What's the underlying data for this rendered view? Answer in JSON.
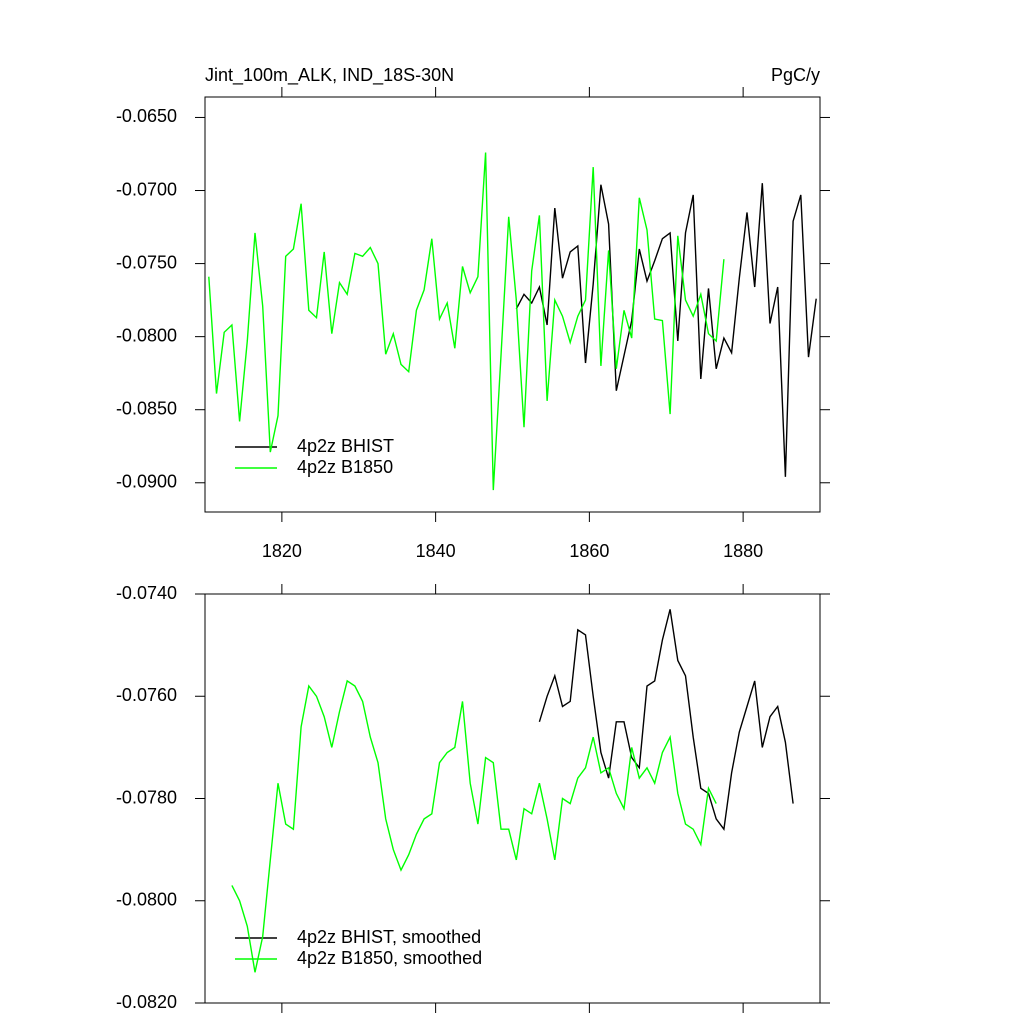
{
  "chart_data": [
    {
      "type": "line",
      "title": "Jint_100m_ALK, IND_18S-30N",
      "units": "PgC/y",
      "xlim": [
        1810,
        1890
      ],
      "xticks": [
        1820,
        1840,
        1860,
        1880
      ],
      "ylim": [
        -0.092,
        -0.0636
      ],
      "yticks": [
        {
          "value": -0.065,
          "label": "-0.0650"
        },
        {
          "value": -0.07,
          "label": "-0.0700"
        },
        {
          "value": -0.075,
          "label": "-0.0750"
        },
        {
          "value": -0.08,
          "label": "-0.0800"
        },
        {
          "value": -0.085,
          "label": "-0.0850"
        },
        {
          "value": -0.09,
          "label": "-0.0900"
        }
      ],
      "legend": "lower left",
      "series": [
        {
          "name": "4p2z BHIST",
          "color": "#000000",
          "x": [
            1850.5,
            1851.5,
            1852.5,
            1853.5,
            1854.5,
            1855.5,
            1856.5,
            1857.5,
            1858.5,
            1859.5,
            1860.5,
            1861.5,
            1862.5,
            1863.5,
            1864.5,
            1865.5,
            1866.5,
            1867.5,
            1868.5,
            1869.5,
            1870.5,
            1871.5,
            1872.5,
            1873.5,
            1874.5,
            1875.5,
            1876.5,
            1877.5,
            1878.5,
            1879.5,
            1880.5,
            1881.5,
            1882.5,
            1883.5,
            1884.5,
            1885.5,
            1886.5,
            1887.5,
            1888.5,
            1889.5
          ],
          "values": [
            -0.0781,
            -0.0771,
            -0.0777,
            -0.0766,
            -0.0792,
            -0.0712,
            -0.076,
            -0.0742,
            -0.0738,
            -0.0818,
            -0.0764,
            -0.0696,
            -0.0723,
            -0.0837,
            -0.0813,
            -0.0789,
            -0.074,
            -0.0762,
            -0.0748,
            -0.0733,
            -0.0729,
            -0.0803,
            -0.0729,
            -0.0703,
            -0.0829,
            -0.0767,
            -0.0822,
            -0.0801,
            -0.0811,
            -0.076,
            -0.0715,
            -0.0766,
            -0.0695,
            -0.0791,
            -0.0766,
            -0.0896,
            -0.0721,
            -0.0703,
            -0.0814,
            -0.0774
          ]
        },
        {
          "name": "4p2z B1850",
          "color": "#00ff00",
          "x": [
            1810.5,
            1811.5,
            1812.5,
            1813.5,
            1814.5,
            1815.5,
            1816.5,
            1817.5,
            1818.5,
            1819.5,
            1820.5,
            1821.5,
            1822.5,
            1823.5,
            1824.5,
            1825.5,
            1826.5,
            1827.5,
            1828.5,
            1829.5,
            1830.5,
            1831.5,
            1832.5,
            1833.5,
            1834.5,
            1835.5,
            1836.5,
            1837.5,
            1838.5,
            1839.5,
            1840.5,
            1841.5,
            1842.5,
            1843.5,
            1844.5,
            1845.5,
            1846.5,
            1847.5,
            1848.5,
            1849.5,
            1850.5,
            1851.5,
            1852.5,
            1853.5,
            1854.5,
            1855.5,
            1856.5,
            1857.5,
            1858.5,
            1859.5,
            1860.5,
            1861.5,
            1862.5,
            1863.5,
            1864.5,
            1865.5,
            1866.5,
            1867.5,
            1868.5,
            1869.5,
            1870.5,
            1871.5,
            1872.5,
            1873.5,
            1874.5,
            1875.5,
            1876.5,
            1877.5
          ],
          "values": [
            -0.0759,
            -0.0839,
            -0.0797,
            -0.0792,
            -0.0858,
            -0.0803,
            -0.0729,
            -0.0779,
            -0.0879,
            -0.0854,
            -0.0745,
            -0.074,
            -0.0709,
            -0.0782,
            -0.0787,
            -0.0742,
            -0.0798,
            -0.0763,
            -0.0771,
            -0.0743,
            -0.0745,
            -0.0739,
            -0.075,
            -0.0812,
            -0.0798,
            -0.0819,
            -0.0824,
            -0.0782,
            -0.0768,
            -0.0733,
            -0.0788,
            -0.0777,
            -0.0808,
            -0.0752,
            -0.077,
            -0.0759,
            -0.0674,
            -0.0905,
            -0.0813,
            -0.0718,
            -0.0775,
            -0.0862,
            -0.0755,
            -0.0717,
            -0.0844,
            -0.0775,
            -0.0786,
            -0.0804,
            -0.0786,
            -0.0775,
            -0.0684,
            -0.082,
            -0.0741,
            -0.0822,
            -0.0782,
            -0.0801,
            -0.0705,
            -0.0727,
            -0.0788,
            -0.0789,
            -0.0853,
            -0.0731,
            -0.0775,
            -0.0786,
            -0.0771,
            -0.0798,
            -0.0803,
            -0.0747
          ]
        }
      ]
    },
    {
      "type": "line",
      "xlim": [
        1810,
        1890
      ],
      "xticks": [
        1820,
        1840,
        1860,
        1880
      ],
      "ylim": [
        -0.082,
        -0.074
      ],
      "yticks": [
        {
          "value": -0.074,
          "label": "-0.0740"
        },
        {
          "value": -0.076,
          "label": "-0.0760"
        },
        {
          "value": -0.078,
          "label": "-0.0780"
        },
        {
          "value": -0.08,
          "label": "-0.0800"
        },
        {
          "value": -0.082,
          "label": "-0.0820"
        }
      ],
      "legend": "lower left",
      "series": [
        {
          "name": "4p2z BHIST, smoothed",
          "color": "#000000",
          "x": [
            1853.5,
            1854.5,
            1855.5,
            1856.5,
            1857.5,
            1858.5,
            1859.5,
            1860.5,
            1861.5,
            1862.5,
            1863.5,
            1864.5,
            1865.5,
            1866.5,
            1867.5,
            1868.5,
            1869.5,
            1870.5,
            1871.5,
            1872.5,
            1873.5,
            1874.5,
            1875.5,
            1876.5,
            1877.5,
            1878.5,
            1879.5,
            1880.5,
            1881.5,
            1882.5,
            1883.5,
            1884.5,
            1885.5,
            1886.5
          ],
          "values": [
            -0.0765,
            -0.076,
            -0.0756,
            -0.0762,
            -0.0761,
            -0.0747,
            -0.0748,
            -0.076,
            -0.0771,
            -0.0776,
            -0.0765,
            -0.0765,
            -0.0772,
            -0.0774,
            -0.0758,
            -0.0757,
            -0.0749,
            -0.0743,
            -0.0753,
            -0.0756,
            -0.0768,
            -0.0778,
            -0.0779,
            -0.0784,
            -0.0786,
            -0.0775,
            -0.0767,
            -0.0762,
            -0.0757,
            -0.077,
            -0.0764,
            -0.0762,
            -0.0769,
            -0.0781
          ]
        },
        {
          "name": "4p2z B1850, smoothed",
          "color": "#00ff00",
          "x": [
            1813.5,
            1814.5,
            1815.5,
            1816.5,
            1817.5,
            1818.5,
            1819.5,
            1820.5,
            1821.5,
            1822.5,
            1823.5,
            1824.5,
            1825.5,
            1826.5,
            1827.5,
            1828.5,
            1829.5,
            1830.5,
            1831.5,
            1832.5,
            1833.5,
            1834.5,
            1835.5,
            1836.5,
            1837.5,
            1838.5,
            1839.5,
            1840.5,
            1841.5,
            1842.5,
            1843.5,
            1844.5,
            1845.5,
            1846.5,
            1847.5,
            1848.5,
            1849.5,
            1850.5,
            1851.5,
            1852.5,
            1853.5,
            1854.5,
            1855.5,
            1856.5,
            1857.5,
            1858.5,
            1859.5,
            1860.5,
            1861.5,
            1862.5,
            1863.5,
            1864.5,
            1865.5,
            1866.5,
            1867.5,
            1868.5,
            1869.5,
            1870.5,
            1871.5,
            1872.5,
            1873.5,
            1874.5,
            1875.5,
            1876.5
          ],
          "values": [
            -0.0797,
            -0.08,
            -0.0805,
            -0.0814,
            -0.0807,
            -0.0792,
            -0.0777,
            -0.0785,
            -0.0786,
            -0.0766,
            -0.0758,
            -0.076,
            -0.0764,
            -0.077,
            -0.0763,
            -0.0757,
            -0.0758,
            -0.0761,
            -0.0768,
            -0.0773,
            -0.0784,
            -0.079,
            -0.0794,
            -0.0791,
            -0.0787,
            -0.0784,
            -0.0783,
            -0.0773,
            -0.0771,
            -0.077,
            -0.0761,
            -0.0777,
            -0.0785,
            -0.0772,
            -0.0773,
            -0.0786,
            -0.0786,
            -0.0792,
            -0.0782,
            -0.0783,
            -0.0777,
            -0.0784,
            -0.0792,
            -0.078,
            -0.0781,
            -0.0776,
            -0.0774,
            -0.0768,
            -0.0775,
            -0.0774,
            -0.0779,
            -0.0782,
            -0.077,
            -0.0776,
            -0.0774,
            -0.0777,
            -0.0771,
            -0.0768,
            -0.0779,
            -0.0785,
            -0.0786,
            -0.0789,
            -0.0778,
            -0.0781
          ]
        }
      ]
    }
  ]
}
